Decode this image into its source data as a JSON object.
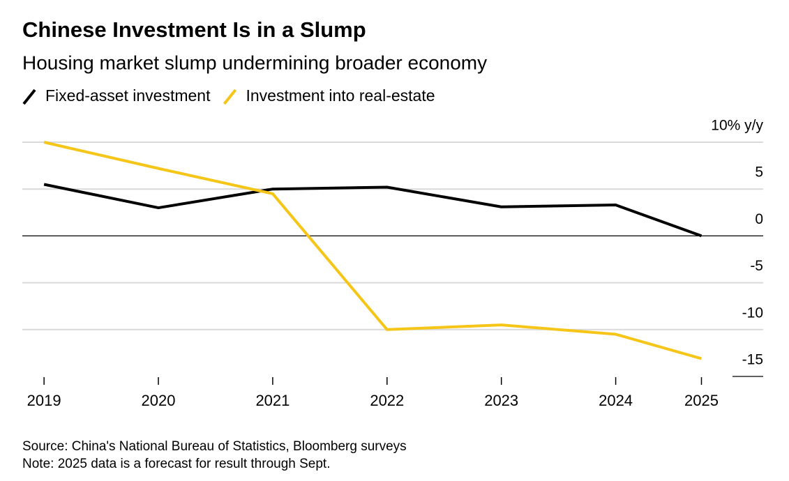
{
  "chart_data": {
    "type": "line",
    "title": "Chinese Investment Is in a Slump",
    "subtitle": "Housing market slump undermining broader economy",
    "source": "Source: China's National Bureau of Statistics, Bloomberg surveys",
    "note": "Note: 2025 data is a forecast for result through Sept.",
    "x": [
      2019,
      2020,
      2021,
      2022,
      2023,
      2024,
      2024.75
    ],
    "xlim": [
      2018.81,
      2025.29
    ],
    "xticks": [
      2019,
      2020,
      2021,
      2022,
      2023,
      2024,
      {
        "value": 2024.75,
        "label": "2025"
      }
    ],
    "ylim": [
      -15,
      10
    ],
    "yticks": [
      {
        "value": 10,
        "label": "10% y/y"
      },
      5,
      0,
      -5,
      -10,
      -15
    ],
    "grid": true,
    "series": [
      {
        "name": "Fixed-asset investment",
        "color": "#000000",
        "values": [
          5.5,
          3.0,
          5.0,
          5.2,
          3.1,
          3.3,
          0.0
        ]
      },
      {
        "name": "Investment into real-estate",
        "color": "#f5c518",
        "values": [
          10.0,
          7.2,
          4.5,
          -10.0,
          -9.5,
          -10.5,
          -13.1
        ]
      }
    ]
  }
}
